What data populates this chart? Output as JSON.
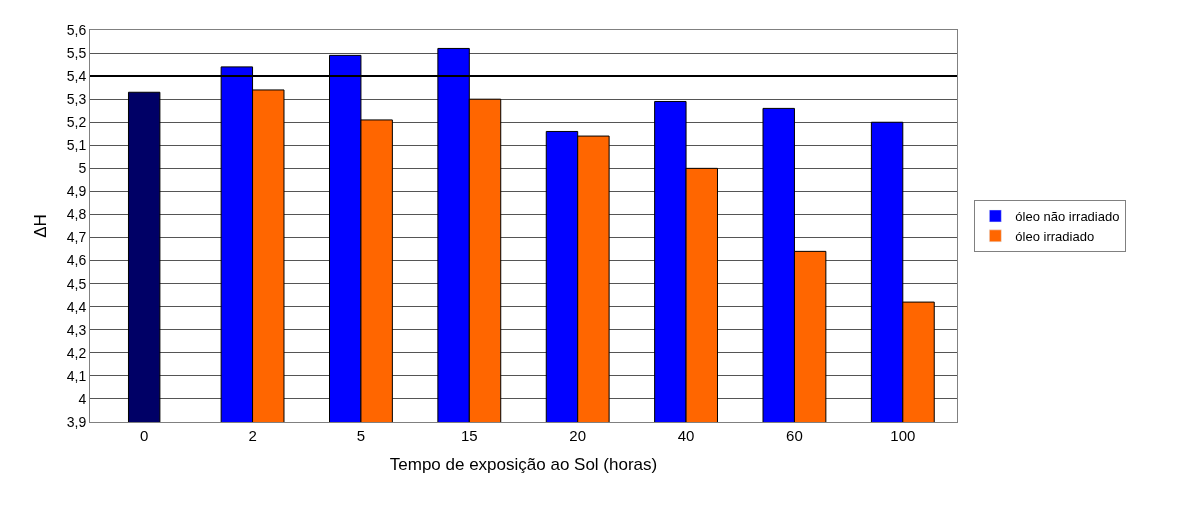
{
  "chart_data": {
    "type": "bar",
    "xlabel": "Tempo de exposição ao Sol (horas)",
    "ylabel": "ΔH",
    "categories": [
      "0",
      "2",
      "5",
      "15",
      "20",
      "40",
      "60",
      "100"
    ],
    "series": [
      {
        "name": "óleo não irradiado",
        "color": "#0000ff",
        "colors": [
          "#000066",
          "#0000ff",
          "#0000ff",
          "#0000ff",
          "#0000ff",
          "#0000ff",
          "#0000ff",
          "#0000ff"
        ],
        "values": [
          5.33,
          5.44,
          5.49,
          5.52,
          5.16,
          5.29,
          5.26,
          5.2
        ]
      },
      {
        "name": "óleo irradiado",
        "color": "#ff6600",
        "values": [
          null,
          5.34,
          5.21,
          5.3,
          5.14,
          5.0,
          4.64,
          4.42
        ]
      }
    ],
    "ylim": [
      3.9,
      5.6
    ],
    "yticks": [
      {
        "value": 3.9,
        "label": "3,9"
      },
      4,
      {
        "value": 4.1,
        "label": "4,1"
      },
      {
        "value": 4.2,
        "label": "4,2"
      },
      {
        "value": 4.3,
        "label": "4,3"
      },
      {
        "value": 4.4,
        "label": "4,4"
      },
      {
        "value": 4.5,
        "label": "4,5"
      },
      {
        "value": 4.6,
        "label": "4,6"
      },
      {
        "value": 4.7,
        "label": "4,7"
      },
      {
        "value": 4.8,
        "label": "4,8"
      },
      {
        "value": 4.9,
        "label": "4,9"
      },
      5,
      {
        "value": 5.1,
        "label": "5,1"
      },
      {
        "value": 5.2,
        "label": "5,2"
      },
      {
        "value": 5.3,
        "label": "5,3"
      },
      {
        "value": 5.4,
        "label": "5,4"
      },
      {
        "value": 5.5,
        "label": "5,5"
      },
      {
        "value": 5.6,
        "label": "5,6"
      }
    ],
    "ref_lines": [
      {
        "axis": "y",
        "value": 5.4,
        "label": null,
        "color": "#000000"
      }
    ],
    "grid": "y",
    "legend": "right"
  }
}
